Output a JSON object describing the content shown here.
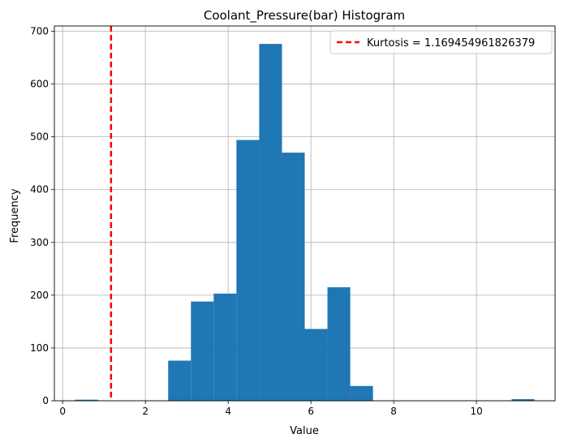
{
  "chart_data": {
    "type": "bar",
    "title": "Coolant_Pressure(bar) Histogram",
    "xlabel": "Value",
    "ylabel": "Frequency",
    "xlim": [
      -0.2,
      11.9
    ],
    "ylim": [
      0,
      710
    ],
    "xticks": [
      0,
      2,
      4,
      6,
      8,
      10
    ],
    "yticks": [
      0,
      100,
      200,
      300,
      400,
      500,
      600,
      700
    ],
    "grid": true,
    "legend_position": "top-right",
    "bin_width": 0.55,
    "bins": [
      {
        "x0": 0.3,
        "x1": 0.85,
        "count": 2
      },
      {
        "x0": 2.55,
        "x1": 3.1,
        "count": 76
      },
      {
        "x0": 3.1,
        "x1": 3.65,
        "count": 188
      },
      {
        "x0": 3.65,
        "x1": 4.2,
        "count": 203
      },
      {
        "x0": 4.2,
        "x1": 4.75,
        "count": 494
      },
      {
        "x0": 4.75,
        "x1": 5.3,
        "count": 676
      },
      {
        "x0": 5.3,
        "x1": 5.85,
        "count": 470
      },
      {
        "x0": 5.85,
        "x1": 6.4,
        "count": 136
      },
      {
        "x0": 6.4,
        "x1": 6.95,
        "count": 215
      },
      {
        "x0": 6.95,
        "x1": 7.5,
        "count": 28
      },
      {
        "x0": 10.85,
        "x1": 11.4,
        "count": 3
      }
    ],
    "reference_line": {
      "x": 1.169454961826379,
      "label": "Kurtosis = 1.169454961826379",
      "color": "#ff0000",
      "style": "dashed"
    },
    "bar_color": "#1f77b4"
  }
}
